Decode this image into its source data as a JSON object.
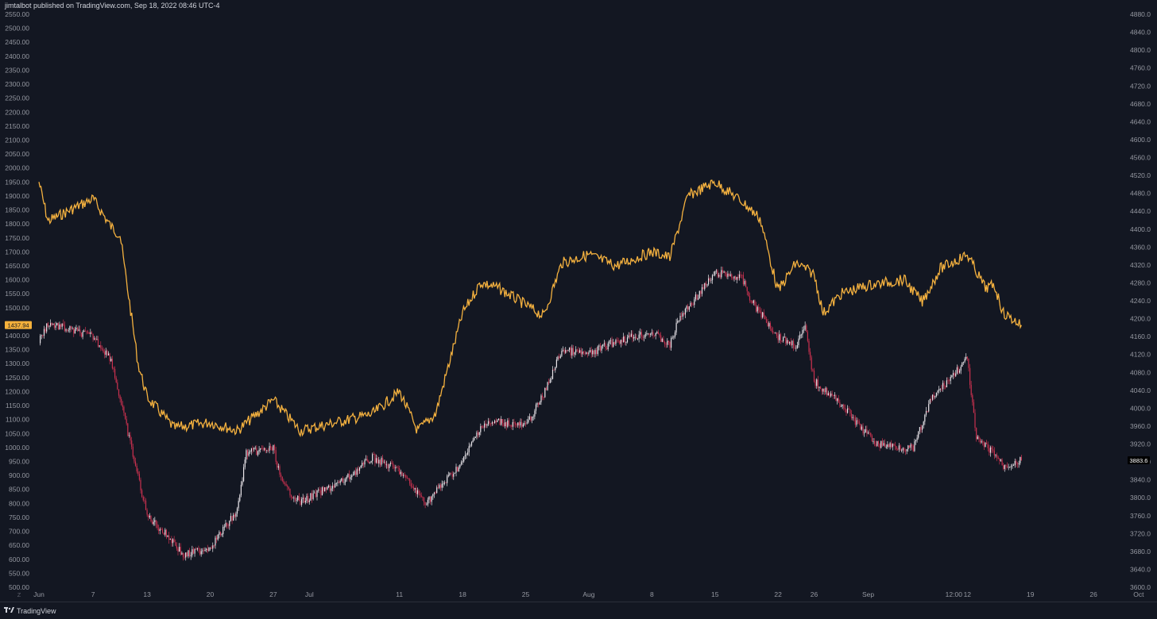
{
  "header": {
    "publisher_line": "jimtalbot published on TradingView.com, Sep 18, 2022 08:46 UTC-4"
  },
  "footer": {
    "brand": "TradingView"
  },
  "colors": {
    "background": "#131722",
    "gold": "#f4b13f",
    "candle_up": "#e9e5ea",
    "candle_down": "#c9314f",
    "label_gold": "#f5b13b",
    "label_dark": "#000000",
    "axis_text": "#9598a1"
  },
  "chart_data": {
    "type": "line",
    "left_axis": {
      "ylim": [
        500,
        2550
      ],
      "ticks": [
        "2550.00",
        "2500.00",
        "2450.00",
        "2400.00",
        "2350.00",
        "2300.00",
        "2250.00",
        "2200.00",
        "2150.00",
        "2100.00",
        "2050.00",
        "2000.00",
        "1950.00",
        "1900.00",
        "1850.00",
        "1800.00",
        "1750.00",
        "1700.00",
        "1650.00",
        "1600.00",
        "1550.00",
        "1500.00",
        "1400.00",
        "1350.00",
        "1300.00",
        "1250.00",
        "1200.00",
        "1150.00",
        "1100.00",
        "1050.00",
        "1000.00",
        "950.00",
        "900.00",
        "850.00",
        "800.00",
        "750.00",
        "700.00",
        "650.00",
        "600.00",
        "550.00",
        "500.00"
      ]
    },
    "right_axis": {
      "ylim": [
        3600,
        4880
      ],
      "ticks": [
        "4880.0",
        "4840.0",
        "4800.0",
        "4760.0",
        "4720.0",
        "4680.0",
        "4640.0",
        "4600.0",
        "4560.0",
        "4520.0",
        "4480.0",
        "4440.0",
        "4400.0",
        "4360.0",
        "4320.0",
        "4280.0",
        "4240.0",
        "4200.0",
        "4160.0",
        "4120.0",
        "4080.0",
        "4040.0",
        "4000.0",
        "3960.0",
        "3920.0",
        "3880.0",
        "3840.0",
        "3800.0",
        "3760.0",
        "3720.0",
        "3680.0",
        "3640.0",
        "3600.0"
      ]
    },
    "x_axis": {
      "ticks": [
        "Jun",
        "7",
        "13",
        "20",
        "27",
        "Jul",
        "11",
        "18",
        "25",
        "Aug",
        "8",
        "15",
        "22",
        "26",
        "Sep",
        "12:00",
        "12",
        "19",
        "26",
        "Oct"
      ],
      "tz_marker": "Z"
    },
    "series": [
      {
        "axis": "left",
        "style": "line",
        "points": [
          [
            "Jun",
            1950
          ],
          [
            "Jun 2",
            1810
          ],
          [
            "Jun 7",
            1890
          ],
          [
            "Jun 9",
            1790
          ],
          [
            "Jun 10",
            1760
          ],
          [
            "Jun 12",
            1300
          ],
          [
            "Jun 13",
            1180
          ],
          [
            "Jun 16",
            1070
          ],
          [
            "Jun 20",
            1090
          ],
          [
            "Jun 23",
            1060
          ],
          [
            "Jun 27",
            1170
          ],
          [
            "Jun 30",
            1060
          ],
          [
            "Jul 4",
            1090
          ],
          [
            "Jul 8",
            1120
          ],
          [
            "Jul 11",
            1200
          ],
          [
            "Jul 13",
            1060
          ],
          [
            "Jul 15",
            1120
          ],
          [
            "Jul 18",
            1480
          ],
          [
            "Jul 20",
            1590
          ],
          [
            "Jul 22",
            1570
          ],
          [
            "Jul 25",
            1510
          ],
          [
            "Jul 27",
            1470
          ],
          [
            "Jul 29",
            1660
          ],
          [
            "Aug",
            1690
          ],
          [
            "Aug 4",
            1650
          ],
          [
            "Aug 8",
            1700
          ],
          [
            "Aug 10",
            1680
          ],
          [
            "Aug 12",
            1900
          ],
          [
            "Aug 15",
            1950
          ],
          [
            "Aug 18",
            1880
          ],
          [
            "Aug 20",
            1820
          ],
          [
            "Aug 22",
            1560
          ],
          [
            "Aug 24",
            1660
          ],
          [
            "Aug 26",
            1620
          ],
          [
            "Aug 27",
            1480
          ],
          [
            "Aug 29",
            1550
          ],
          [
            "Sep",
            1580
          ],
          [
            "Sep 5",
            1600
          ],
          [
            "Sep 7",
            1520
          ],
          [
            "Sep 9",
            1640
          ],
          [
            "Sep 12",
            1690
          ],
          [
            "Sep 14",
            1570
          ],
          [
            "Sep 15",
            1580
          ],
          [
            "Sep 16",
            1480
          ],
          [
            "Sep 18",
            1437.94
          ]
        ],
        "last_value_label": "1437.94"
      },
      {
        "axis": "right",
        "style": "candles",
        "points": [
          [
            "Jun",
            4150
          ],
          [
            "Jun 2",
            4190
          ],
          [
            "Jun 7",
            4160
          ],
          [
            "Jun 9",
            4110
          ],
          [
            "Jun 10",
            4020
          ],
          [
            "Jun 13",
            3760
          ],
          [
            "Jun 16",
            3700
          ],
          [
            "Jun 17",
            3670
          ],
          [
            "Jun 20",
            3690
          ],
          [
            "Jun 23",
            3770
          ],
          [
            "Jun 24",
            3900
          ],
          [
            "Jun 27",
            3910
          ],
          [
            "Jun 28",
            3830
          ],
          [
            "Jun 30",
            3790
          ],
          [
            "Jul 5",
            3840
          ],
          [
            "Jul 8",
            3890
          ],
          [
            "Jul 11",
            3860
          ],
          [
            "Jul 13",
            3810
          ],
          [
            "Jul 14",
            3790
          ],
          [
            "Jul 18",
            3880
          ],
          [
            "Jul 20",
            3960
          ],
          [
            "Jul 22",
            3970
          ],
          [
            "Jul 25",
            3960
          ],
          [
            "Jul 27",
            4030
          ],
          [
            "Jul 29",
            4130
          ],
          [
            "Aug",
            4120
          ],
          [
            "Aug 4",
            4150
          ],
          [
            "Aug 8",
            4170
          ],
          [
            "Aug 10",
            4140
          ],
          [
            "Aug 11",
            4200
          ],
          [
            "Aug 15",
            4300
          ],
          [
            "Aug 16",
            4300
          ],
          [
            "Aug 18",
            4290
          ],
          [
            "Aug 19",
            4240
          ],
          [
            "Aug 22",
            4160
          ],
          [
            "Aug 24",
            4140
          ],
          [
            "Aug 25",
            4180
          ],
          [
            "Aug 26",
            4060
          ],
          [
            "Aug 29",
            4010
          ],
          [
            "Aug 31",
            3960
          ],
          [
            "Sep 2",
            3920
          ],
          [
            "Sep 6",
            3910
          ],
          [
            "Sep 8",
            4020
          ],
          [
            "Sep 12",
            4110
          ],
          [
            "Sep 13",
            3930
          ],
          [
            "Sep 15",
            3900
          ],
          [
            "Sep 16",
            3870
          ],
          [
            "Sep 18",
            3883.6
          ]
        ],
        "last_value_label": "3883.6"
      }
    ]
  }
}
